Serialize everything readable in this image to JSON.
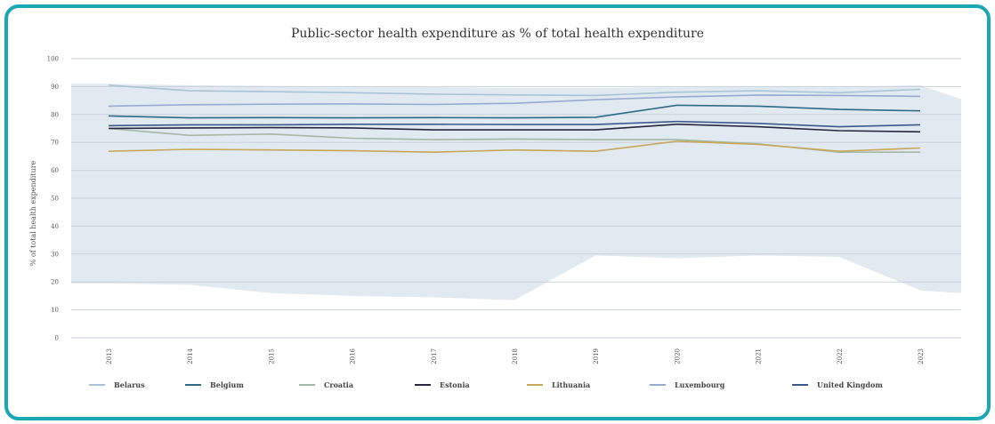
{
  "chart_data": {
    "type": "line",
    "title": "Public-sector health expenditure as % of total health expenditure",
    "subtitle": "",
    "xlabel": "",
    "ylabel": "% of total health expenditure",
    "ylim": [
      0,
      100
    ],
    "yticks": [
      0,
      10,
      20,
      30,
      40,
      50,
      60,
      70,
      80,
      90,
      100
    ],
    "categories": [
      "2013",
      "2014",
      "2015",
      "2016",
      "2017",
      "2018",
      "2019",
      "2020",
      "2021",
      "2022",
      "2023"
    ],
    "grid": true,
    "legend_position": "bottom",
    "series": [
      {
        "name": "Belarus",
        "color": "#a9c4d6",
        "values": [
          90.5,
          88.5,
          88.2,
          87.8,
          87.3,
          87.0,
          86.8,
          88.0,
          88.5,
          87.8,
          89.0
        ]
      },
      {
        "name": "Belgium",
        "color": "#2e6b86",
        "values": [
          79.5,
          78.8,
          78.9,
          78.8,
          78.9,
          78.8,
          79.0,
          83.3,
          83.0,
          81.8,
          81.3
        ]
      },
      {
        "name": "Croatia",
        "color": "#a5b8a6",
        "values": [
          75.0,
          72.5,
          73.0,
          71.5,
          71.0,
          71.2,
          71.0,
          71.0,
          69.5,
          66.5,
          66.5
        ]
      },
      {
        "name": "Estonia",
        "color": "#27283f",
        "values": [
          75.0,
          75.2,
          75.3,
          75.2,
          74.5,
          74.5,
          74.5,
          76.5,
          75.6,
          74.2,
          73.8
        ]
      },
      {
        "name": "Lithuania",
        "color": "#c8a85a",
        "values": [
          66.8,
          67.5,
          67.3,
          67.0,
          66.5,
          67.3,
          66.8,
          70.4,
          69.3,
          66.8,
          68.0
        ]
      },
      {
        "name": "Luxembourg",
        "color": "#98acd0",
        "values": [
          83.0,
          83.5,
          83.7,
          83.8,
          83.6,
          84.0,
          85.3,
          86.3,
          86.9,
          86.8,
          86.5
        ]
      },
      {
        "name": "United Kingdom",
        "color": "#3e5a8c",
        "values": [
          76.0,
          76.3,
          76.3,
          76.5,
          76.5,
          76.4,
          76.4,
          77.5,
          76.8,
          75.6,
          76.3
        ]
      }
    ],
    "envelope": {
      "color": "#e1e9f1",
      "upper": [
        91.0,
        90.5,
        90.2,
        90.0,
        89.8,
        89.5,
        89.5,
        89.8,
        90.0,
        89.8,
        90.5
      ],
      "lower": [
        19.5,
        19.0,
        16.0,
        15.0,
        14.5,
        13.5,
        29.5,
        28.5,
        29.5,
        29.0,
        17.0
      ]
    }
  }
}
